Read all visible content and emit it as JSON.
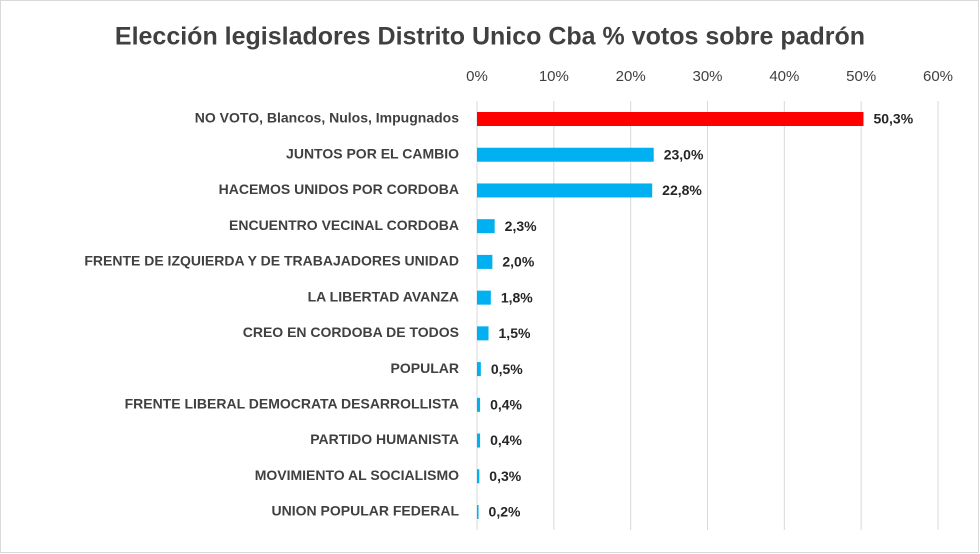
{
  "chart_data": {
    "type": "bar",
    "orientation": "horizontal",
    "title": "Elección legisladores Distrito Unico Cba % votos sobre padrón",
    "categories": [
      "NO VOTO, Blancos, Nulos, Impugnados",
      "JUNTOS POR EL CAMBIO",
      "HACEMOS UNIDOS POR CORDOBA",
      "ENCUENTRO VECINAL CORDOBA",
      "FRENTE DE IZQUIERDA Y DE TRABAJADORES UNIDAD",
      "LA LIBERTAD AVANZA",
      "CREO EN CORDOBA DE TODOS",
      "POPULAR",
      "FRENTE LIBERAL DEMOCRATA DESARROLLISTA",
      "PARTIDO HUMANISTA",
      "MOVIMIENTO AL SOCIALISMO",
      "UNION POPULAR FEDERAL"
    ],
    "values": [
      50.3,
      23.0,
      22.8,
      2.3,
      2.0,
      1.8,
      1.5,
      0.5,
      0.4,
      0.4,
      0.3,
      0.2
    ],
    "value_labels": [
      "50,3%",
      "23,0%",
      "22,8%",
      "2,3%",
      "2,0%",
      "1,8%",
      "1,5%",
      "0,5%",
      "0,4%",
      "0,4%",
      "0,3%",
      "0,2%"
    ],
    "colors": [
      "#ff0000",
      "#00b0f0",
      "#00b0f0",
      "#00b0f0",
      "#00b0f0",
      "#00b0f0",
      "#00b0f0",
      "#00b0f0",
      "#00b0f0",
      "#00b0f0",
      "#00b0f0",
      "#00b0f0"
    ],
    "xlim": [
      0,
      60
    ],
    "xticks": [
      {
        "value": 0,
        "label": "0%"
      },
      {
        "value": 10,
        "label": "10%"
      },
      {
        "value": 20,
        "label": "20%"
      },
      {
        "value": 30,
        "label": "30%"
      },
      {
        "value": 40,
        "label": "40%"
      },
      {
        "value": 50,
        "label": "50%"
      },
      {
        "value": 60,
        "label": "60%"
      }
    ],
    "grid": true,
    "axis_position": "top"
  }
}
